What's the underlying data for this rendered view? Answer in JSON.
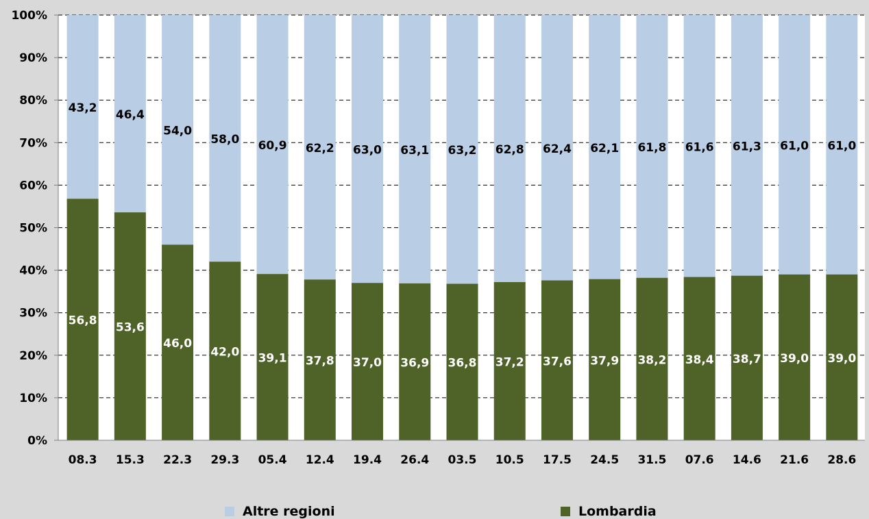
{
  "chart_data": {
    "type": "bar",
    "stacked": true,
    "percent_stacked": true,
    "categories": [
      "08.3",
      "15.3",
      "22.3",
      "29.3",
      "05.4",
      "12.4",
      "19.4",
      "26.4",
      "03.5",
      "10.5",
      "17.5",
      "24.5",
      "31.5",
      "07.6",
      "14.6",
      "21.6",
      "28.6"
    ],
    "series": [
      {
        "name": "Lombardia",
        "color": "#4f6228",
        "values": [
          56.8,
          53.6,
          46.0,
          42.0,
          39.1,
          37.8,
          37.0,
          36.9,
          36.8,
          37.2,
          37.6,
          37.9,
          38.2,
          38.4,
          38.7,
          39.0,
          39.0
        ],
        "labels": [
          "56,8",
          "53,6",
          "46,0",
          "42,0",
          "39,1",
          "37,8",
          "37,0",
          "36,9",
          "36,8",
          "37,2",
          "37,6",
          "37,9",
          "38,2",
          "38,4",
          "38,7",
          "39,0",
          "39,0"
        ]
      },
      {
        "name": "Altre regioni",
        "color": "#b9cde5",
        "values": [
          43.2,
          46.4,
          54.0,
          58.0,
          60.9,
          62.2,
          63.0,
          63.1,
          63.2,
          62.8,
          62.4,
          62.1,
          61.8,
          61.6,
          61.3,
          61.0,
          61.0
        ],
        "labels": [
          "43,2",
          "46,4",
          "54,0",
          "58,0",
          "60,9",
          "62,2",
          "63,0",
          "63,1",
          "63,2",
          "62,8",
          "62,4",
          "62,1",
          "61,8",
          "61,6",
          "61,3",
          "61,0",
          "61,0"
        ]
      }
    ],
    "y_ticks": [
      "0%",
      "10%",
      "20%",
      "30%",
      "40%",
      "50%",
      "60%",
      "70%",
      "80%",
      "90%",
      "100%"
    ],
    "ylim": [
      0,
      100
    ],
    "grid": true,
    "legend_position": "bottom",
    "title": "",
    "xlabel": "",
    "ylabel": ""
  },
  "legend": [
    {
      "label": "Altre regioni",
      "color": "#b9cde5"
    },
    {
      "label": "Lombardia",
      "color": "#4f6228"
    }
  ]
}
